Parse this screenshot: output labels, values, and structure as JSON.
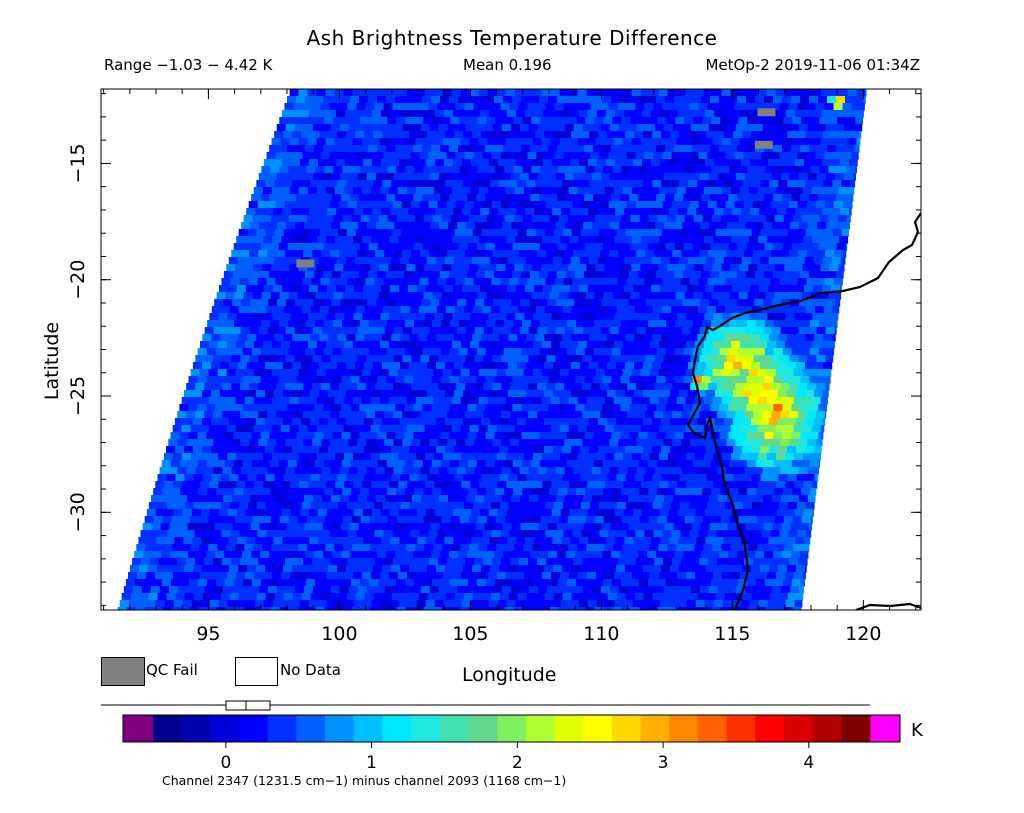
{
  "header": {
    "title": "Ash Brightness Temperature Difference",
    "range": "Range −1.03 − 4.42 K",
    "mean": "Mean 0.196",
    "satellite_time": "MetOp-2 2019-11-06 01:34Z"
  },
  "axes": {
    "xlabel": "Longitude",
    "ylabel": "Latitude",
    "x_ticks": [
      "95",
      "100",
      "105",
      "110",
      "115",
      "120"
    ],
    "y_ticks": [
      "−15",
      "−20",
      "−25",
      "−30"
    ],
    "x_values": [
      95,
      100,
      105,
      110,
      115,
      120
    ],
    "y_values": [
      -15,
      -20,
      -25,
      -30
    ],
    "xlim": [
      90.9,
      122.2
    ],
    "ylim": [
      -34.2,
      -11.8
    ]
  },
  "legend": {
    "qc_fail": "QC Fail",
    "no_data": "No Data",
    "qc_fail_color": "#808080",
    "no_data_color": "#ffffff"
  },
  "colorbar": {
    "ticks": [
      "0",
      "1",
      "2",
      "3",
      "4"
    ],
    "tick_values": [
      0,
      1,
      2,
      3,
      4
    ],
    "range": [
      -0.5,
      4.42
    ],
    "unit": "K",
    "caption": "Channel 2347 (1231.5 cm−1) minus channel 2093 (1168 cm−1)",
    "under_color": "#800080",
    "over_color": "#ff00ff",
    "colors": [
      "#00008b",
      "#0000b0",
      "#0000d8",
      "#0000ff",
      "#0030ff",
      "#0060ff",
      "#0090ff",
      "#00c0ff",
      "#00e8ff",
      "#20e8e0",
      "#40e0b0",
      "#60d890",
      "#80f060",
      "#b0ff30",
      "#e0ff00",
      "#ffff00",
      "#ffd800",
      "#ffb000",
      "#ff8800",
      "#ff6000",
      "#ff3000",
      "#ff0000",
      "#d80000",
      "#b00000",
      "#800000"
    ]
  },
  "chart_data": {
    "type": "heatmap",
    "title": "Ash Brightness Temperature Difference",
    "xlabel": "Longitude",
    "ylabel": "Latitude",
    "xlim": [
      90.9,
      122.2
    ],
    "ylim": [
      -34.2,
      -11.8
    ],
    "value_range": [
      -1.03,
      4.42
    ],
    "mean": 0.196,
    "swath_west_edge": [
      [
        98.1,
        -11.8
      ],
      [
        91.5,
        -34.2
      ]
    ],
    "swath_east_edge": [
      [
        120.1,
        -11.8
      ],
      [
        117.6,
        -34.2
      ]
    ],
    "background_value": 0.3,
    "hotspots": [
      {
        "lon": 115.1,
        "lat": -23.4,
        "value": 2.9
      },
      {
        "lon": 115.8,
        "lat": -24.4,
        "value": 3.1
      },
      {
        "lon": 116.5,
        "lat": -25.4,
        "value": 2.9
      },
      {
        "lon": 116.4,
        "lat": -26.2,
        "value": 2.7
      },
      {
        "lon": 113.6,
        "lat": -24.2,
        "value": 4.4
      },
      {
        "lon": 118.9,
        "lat": -12.2,
        "value": 4.3
      }
    ],
    "qc_fail_points": [
      {
        "lon": 116.3,
        "lat": -12.8
      },
      {
        "lon": 116.2,
        "lat": -14.2
      },
      {
        "lon": 98.7,
        "lat": -19.3
      }
    ]
  }
}
